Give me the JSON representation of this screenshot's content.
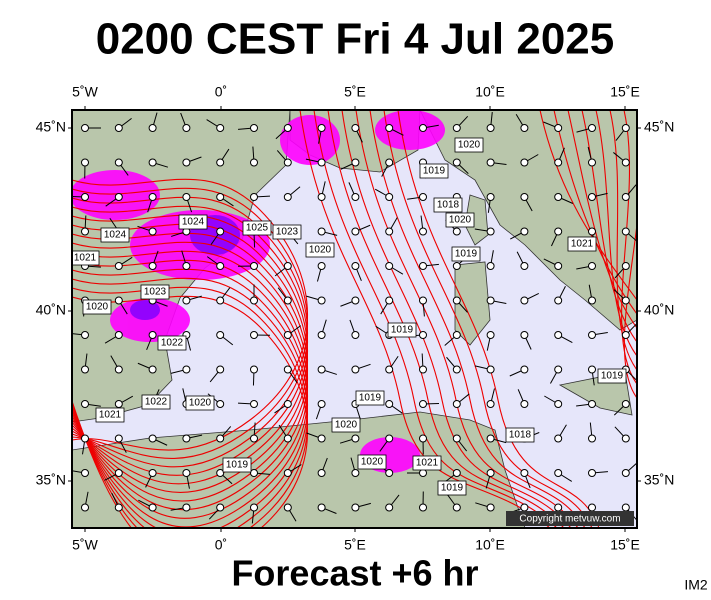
{
  "header": {
    "title": "0200 CEST Fri 4 Jul 2025"
  },
  "axes": {
    "top": [
      "5˚W",
      "0˚",
      "5˚E",
      "10˚E",
      "15˚E"
    ],
    "bottom": [
      "5˚W",
      "0˚",
      "5˚E",
      "10˚E",
      "15˚E"
    ],
    "left": [
      "45˚N",
      "40˚N",
      "35˚N"
    ],
    "right": [
      "45˚N",
      "40˚N",
      "35˚N"
    ]
  },
  "isobar_labels": [
    "1024",
    "1025",
    "1023",
    "1024",
    "1021",
    "1023",
    "1020",
    "1022",
    "1022",
    "1021",
    "1020",
    "1020",
    "1020",
    "1019",
    "1019",
    "1020",
    "1021",
    "1019",
    "1018",
    "1019",
    "1018",
    "1020",
    "1019",
    "1020",
    "1021",
    "1019",
    "1019"
  ],
  "copyright": "Copyright metvuw.com",
  "footer": {
    "forecast": "Forecast +6 hr",
    "code": "IM2"
  }
}
